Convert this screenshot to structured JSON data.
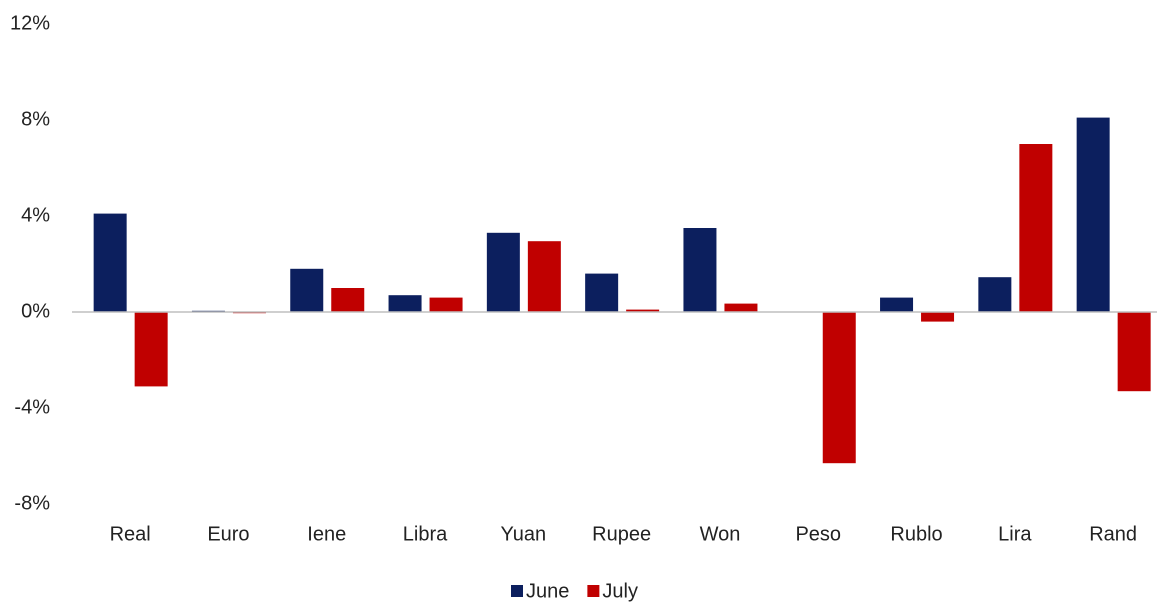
{
  "chart_data": {
    "type": "bar",
    "categories": [
      "Real",
      "Euro",
      "Iene",
      "Libra",
      "Yuan",
      "Rupee",
      "Won",
      "Peso",
      "Rublo",
      "Lira",
      "Rand"
    ],
    "series": [
      {
        "name": "June",
        "color": "#0c1f5e",
        "values": [
          4.1,
          0.05,
          1.8,
          0.7,
          3.3,
          1.6,
          3.5,
          0,
          0.6,
          1.45,
          8.1
        ]
      },
      {
        "name": "July",
        "color": "#c00000",
        "values": [
          -3.1,
          -0.05,
          1.0,
          0.6,
          2.95,
          0.1,
          0.35,
          -6.3,
          -0.4,
          7.0,
          -3.3
        ]
      }
    ],
    "ylim": [
      -8,
      12
    ],
    "yticks": [
      {
        "value": -8,
        "label": "-8%"
      },
      {
        "value": -4,
        "label": "-4%"
      },
      {
        "value": 0,
        "label": "0%"
      },
      {
        "value": 4,
        "label": "4%"
      },
      {
        "value": 8,
        "label": "8%"
      },
      {
        "value": 12,
        "label": "12%"
      }
    ],
    "grid": false,
    "legend": "bottom"
  }
}
